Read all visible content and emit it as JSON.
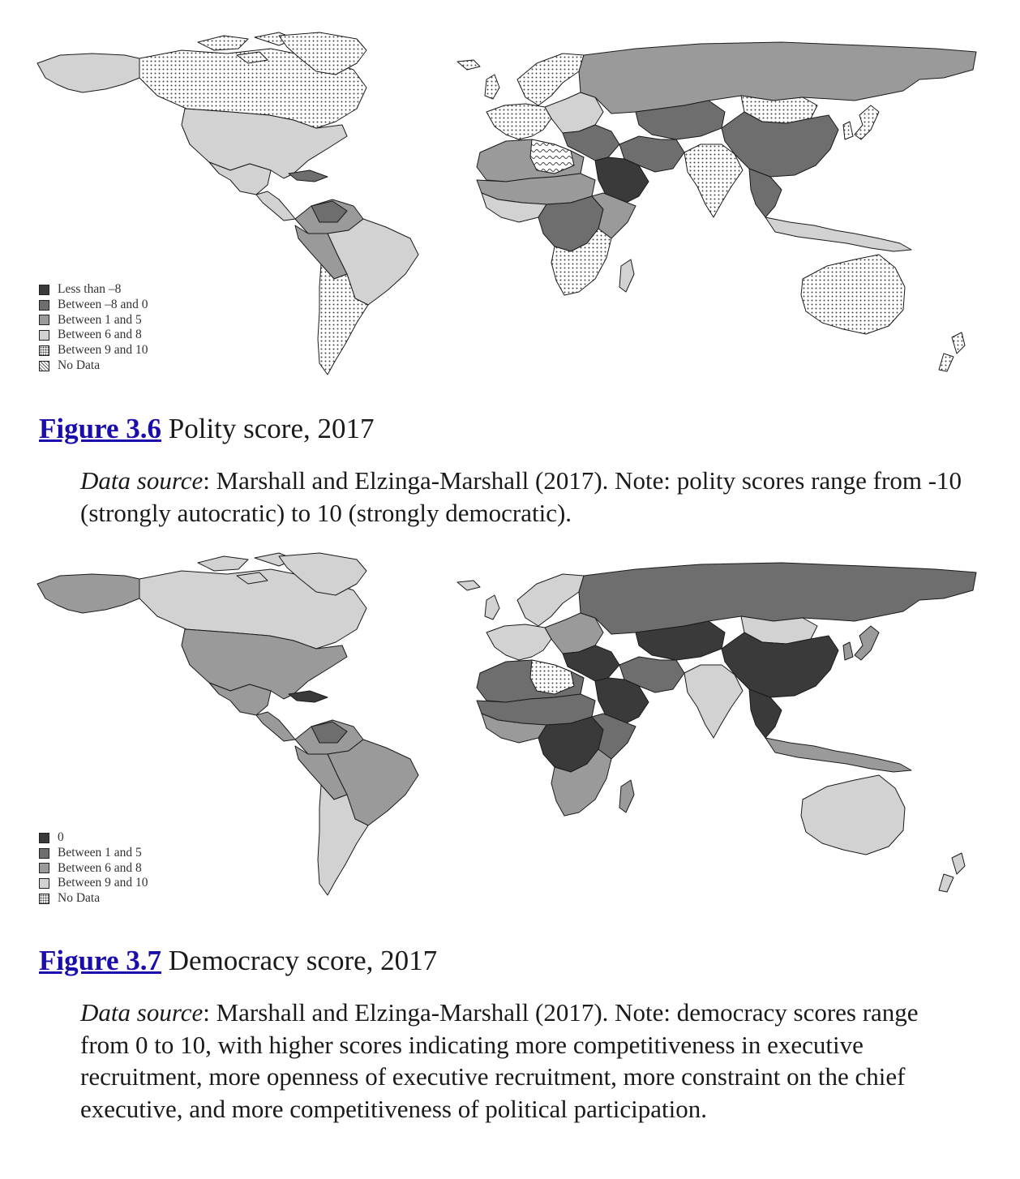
{
  "figures": [
    {
      "link_label": "Figure 3.6",
      "title": "Polity score, 2017",
      "source_label": "Data source",
      "source_text": ": Marshall and Elzinga-Marshall (2017). Note: polity scores range from -10 (strongly autocratic) to 10 (strongly democratic).",
      "legend": [
        {
          "label": "Less than –8",
          "fill": "#3a3a3a",
          "pattern": "none"
        },
        {
          "label": "Between –8 and 0",
          "fill": "#6e6e6e",
          "pattern": "none"
        },
        {
          "label": "Between 1 and 5",
          "fill": "#9a9a9a",
          "pattern": "none"
        },
        {
          "label": "Between 6 and 8",
          "fill": "#d2d2d2",
          "pattern": "none"
        },
        {
          "label": "Between 9 and 10",
          "fill": "#ffffff",
          "pattern": "dots"
        },
        {
          "label": "No Data",
          "fill": "#ffffff",
          "pattern": "squiggle"
        }
      ],
      "regions": {
        "canada": 4,
        "alaska": 3,
        "greenland": 4,
        "arctic_islands": 4,
        "usa": 3,
        "mexico": 3,
        "central_america": 3,
        "cuba": 1,
        "south_america_north": 2,
        "venezuela": 1,
        "brazil": 3,
        "peru_bolivia": 2,
        "chile_argentina": 4,
        "iceland_uk": 4,
        "western_europe": 4,
        "eastern_europe": 3,
        "scandinavia": 4,
        "russia": 2,
        "kazakhstan": 1,
        "mongolia": 4,
        "china": 1,
        "korea_japan": 4,
        "middle_east": 1,
        "iran": 1,
        "saudi": 0,
        "india": 4,
        "southeast_asia": 1,
        "north_africa": 2,
        "libya": 5,
        "sahel": 2,
        "west_africa": 3,
        "central_africa": 1,
        "east_africa": 2,
        "southern_africa": 4,
        "madagascar": 3,
        "indonesia": 3,
        "australia": 4,
        "new_zealand": 4
      }
    },
    {
      "link_label": "Figure 3.7",
      "title": "Democracy score, 2017",
      "source_label": "Data source",
      "source_text": ": Marshall and Elzinga-Marshall (2017). Note: democracy scores range from 0 to 10, with higher scores indicating more competitiveness in executive recruitment, more openness of executive recruitment, more constraint on the chief executive, and more competitiveness of political participation.",
      "legend": [
        {
          "label": "0",
          "fill": "#3a3a3a",
          "pattern": "none"
        },
        {
          "label": "Between 1 and 5",
          "fill": "#6e6e6e",
          "pattern": "none"
        },
        {
          "label": "Between 6 and 8",
          "fill": "#9a9a9a",
          "pattern": "none"
        },
        {
          "label": "Between 9 and 10",
          "fill": "#d2d2d2",
          "pattern": "none"
        },
        {
          "label": "No Data",
          "fill": "#ffffff",
          "pattern": "dots"
        }
      ],
      "regions": {
        "canada": 3,
        "alaska": 2,
        "greenland": 3,
        "arctic_islands": 3,
        "usa": 2,
        "mexico": 2,
        "central_america": 2,
        "cuba": 0,
        "south_america_north": 2,
        "venezuela": 1,
        "brazil": 2,
        "peru_bolivia": 2,
        "chile_argentina": 3,
        "iceland_uk": 3,
        "western_europe": 3,
        "eastern_europe": 2,
        "scandinavia": 3,
        "russia": 1,
        "kazakhstan": 0,
        "mongolia": 3,
        "china": 0,
        "korea_japan": 2,
        "middle_east": 0,
        "iran": 1,
        "saudi": 0,
        "india": 3,
        "southeast_asia": 0,
        "north_africa": 1,
        "libya": 4,
        "sahel": 1,
        "west_africa": 2,
        "central_africa": 0,
        "east_africa": 1,
        "southern_africa": 2,
        "madagascar": 2,
        "indonesia": 2,
        "australia": 3,
        "new_zealand": 3
      }
    }
  ]
}
